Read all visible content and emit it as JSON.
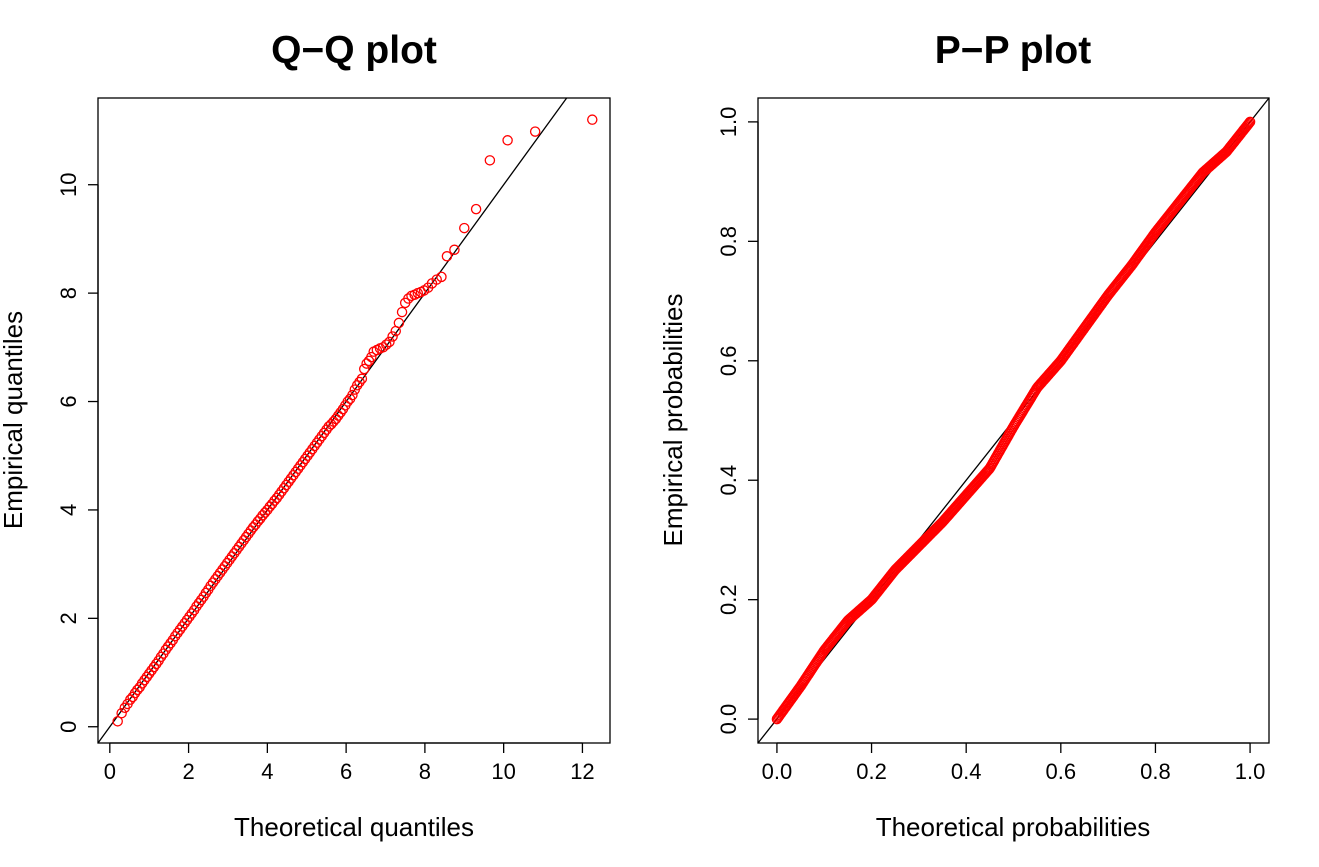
{
  "chart_data": [
    {
      "type": "scatter",
      "title": "Q−Q plot",
      "xlabel": "Theoretical quantiles",
      "ylabel": "Empirical quantiles",
      "xlim": [
        -0.3,
        12.7
      ],
      "ylim": [
        -0.3,
        11.6
      ],
      "xticks": [
        0,
        2,
        4,
        6,
        8,
        10,
        12
      ],
      "yticks": [
        0,
        2,
        4,
        6,
        8,
        10
      ],
      "xtick_labels": [
        "0",
        "2",
        "4",
        "6",
        "8",
        "10",
        "12"
      ],
      "ytick_labels": [
        "0",
        "2",
        "4",
        "6",
        "8",
        "10"
      ],
      "grid": false,
      "point_color": "#ff0000",
      "reference_line": {
        "slope": 1,
        "intercept": 0,
        "color": "#000000"
      },
      "series": [
        {
          "x": [
            0.2,
            0.3,
            0.38,
            0.45,
            0.52,
            0.58,
            0.64,
            0.7,
            0.76,
            0.82,
            0.88,
            0.94,
            1.0,
            1.06,
            1.12,
            1.18,
            1.24,
            1.3,
            1.36,
            1.42,
            1.48,
            1.54,
            1.6,
            1.66,
            1.72,
            1.78,
            1.84,
            1.9,
            1.96,
            2.02,
            2.08,
            2.14,
            2.2,
            2.26,
            2.32,
            2.38,
            2.44,
            2.5,
            2.56,
            2.62,
            2.68,
            2.74,
            2.8,
            2.86,
            2.92,
            2.98,
            3.04,
            3.1,
            3.16,
            3.22,
            3.28,
            3.34,
            3.4,
            3.46,
            3.52,
            3.58,
            3.64,
            3.7,
            3.76,
            3.82,
            3.88,
            3.94,
            4.0,
            4.06,
            4.12,
            4.18,
            4.24,
            4.3,
            4.36,
            4.42,
            4.48,
            4.54,
            4.6,
            4.66,
            4.72,
            4.78,
            4.84,
            4.9,
            4.96,
            5.02,
            5.08,
            5.14,
            5.2,
            5.26,
            5.32,
            5.38,
            5.44,
            5.5,
            5.56,
            5.62,
            5.68,
            5.74,
            5.8,
            5.86,
            5.92,
            5.98,
            6.04,
            6.1,
            6.16,
            6.22,
            6.28,
            6.34,
            6.4,
            6.46,
            6.52,
            6.58,
            6.64,
            6.7,
            6.78,
            6.86,
            6.94,
            7.02,
            7.1,
            7.18,
            7.26,
            7.34,
            7.42,
            7.5,
            7.58,
            7.66,
            7.74,
            7.82,
            7.9,
            7.98,
            8.08,
            8.18,
            8.3,
            8.42,
            8.56,
            8.75,
            9.0,
            9.3,
            9.65,
            10.1,
            10.8,
            12.25
          ],
          "y": [
            0.1,
            0.25,
            0.35,
            0.42,
            0.5,
            0.55,
            0.62,
            0.68,
            0.73,
            0.8,
            0.86,
            0.92,
            0.98,
            1.04,
            1.1,
            1.16,
            1.22,
            1.29,
            1.35,
            1.42,
            1.48,
            1.54,
            1.6,
            1.67,
            1.73,
            1.79,
            1.85,
            1.91,
            1.97,
            2.03,
            2.09,
            2.15,
            2.22,
            2.28,
            2.34,
            2.4,
            2.47,
            2.53,
            2.6,
            2.66,
            2.72,
            2.78,
            2.84,
            2.9,
            2.96,
            3.02,
            3.08,
            3.14,
            3.2,
            3.26,
            3.32,
            3.38,
            3.44,
            3.5,
            3.56,
            3.62,
            3.68,
            3.73,
            3.79,
            3.84,
            3.9,
            3.95,
            4.0,
            4.06,
            4.11,
            4.17,
            4.22,
            4.28,
            4.34,
            4.4,
            4.46,
            4.52,
            4.58,
            4.64,
            4.7,
            4.76,
            4.82,
            4.88,
            4.94,
            5.0,
            5.06,
            5.12,
            5.18,
            5.24,
            5.3,
            5.36,
            5.42,
            5.48,
            5.54,
            5.58,
            5.63,
            5.68,
            5.74,
            5.8,
            5.86,
            5.93,
            6.0,
            6.05,
            6.12,
            6.22,
            6.3,
            6.36,
            6.42,
            6.6,
            6.7,
            6.75,
            6.82,
            6.92,
            6.95,
            6.98,
            7.0,
            7.05,
            7.1,
            7.2,
            7.3,
            7.45,
            7.65,
            7.82,
            7.9,
            7.95,
            7.97,
            8.0,
            8.02,
            8.05,
            8.1,
            8.18,
            8.25,
            8.3,
            8.68,
            8.8,
            9.2,
            9.55,
            10.45,
            10.82,
            10.98,
            11.2
          ]
        }
      ]
    },
    {
      "type": "scatter",
      "title": "P−P plot",
      "xlabel": "Theoretical probabilities",
      "ylabel": "Empirical probabilities",
      "xlim": [
        -0.04,
        1.04
      ],
      "ylim": [
        -0.04,
        1.04
      ],
      "xticks": [
        0.0,
        0.2,
        0.4,
        0.6,
        0.8,
        1.0
      ],
      "yticks": [
        0.0,
        0.2,
        0.4,
        0.6,
        0.8,
        1.0
      ],
      "xtick_labels": [
        "0.0",
        "0.2",
        "0.4",
        "0.6",
        "0.8",
        "1.0"
      ],
      "ytick_labels": [
        "0.0",
        "0.2",
        "0.4",
        "0.6",
        "0.8",
        "1.0"
      ],
      "grid": false,
      "point_color": "#ff0000",
      "reference_line": {
        "slope": 1,
        "intercept": 0,
        "color": "#000000"
      },
      "series": [
        {
          "curve_x": [
            0.0,
            0.05,
            0.1,
            0.15,
            0.2,
            0.25,
            0.3,
            0.35,
            0.4,
            0.45,
            0.5,
            0.55,
            0.6,
            0.65,
            0.7,
            0.75,
            0.8,
            0.85,
            0.9,
            0.95,
            1.0
          ],
          "curve_y": [
            0.0,
            0.055,
            0.115,
            0.165,
            0.2,
            0.25,
            0.29,
            0.33,
            0.375,
            0.42,
            0.49,
            0.555,
            0.6,
            0.655,
            0.71,
            0.76,
            0.815,
            0.865,
            0.915,
            0.95,
            1.0
          ]
        }
      ]
    }
  ]
}
